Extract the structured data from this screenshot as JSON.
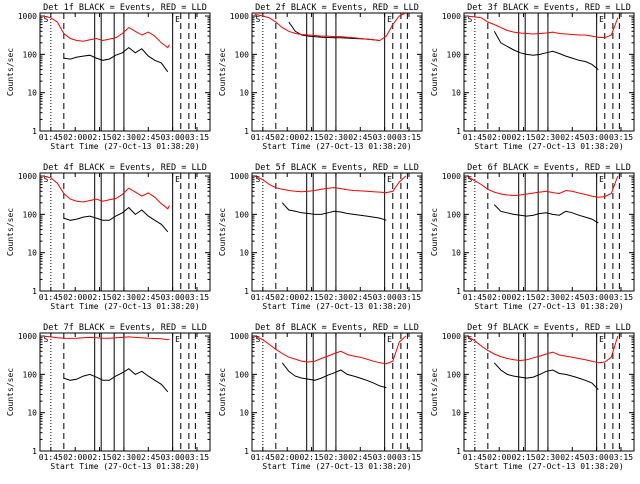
{
  "figure": {
    "y_axis_label": "Counts/sec",
    "x_axis_label": "Start Time (27-Oct-13 01:38:20)"
  },
  "axis": {
    "x_ticks": [
      "01:45",
      "02:00",
      "02:15",
      "02:30",
      "02:45",
      "03:00",
      "03:15"
    ],
    "x_tick_minutes": [
      0,
      15,
      30,
      45,
      60,
      75,
      90
    ],
    "y_ticks": [
      "1",
      "10",
      "100",
      "1000"
    ],
    "y_tick_values": [
      1,
      10,
      100,
      1000
    ],
    "xlim_minutes": [
      -6.67,
      98.0
    ],
    "ylim": [
      1,
      1200
    ],
    "scale": "log"
  },
  "colors": {
    "events": "#000000",
    "lld": "#ff0000",
    "frame": "#000000"
  },
  "chart_data": [
    {
      "type": "line",
      "title": "Det 1f BLACK = Events, RED = LLD",
      "x_minutes": [
        -5,
        0,
        4,
        8,
        12,
        16,
        20,
        24,
        28,
        32,
        36,
        40,
        44,
        48,
        52,
        56,
        60,
        64,
        68,
        72,
        73
      ],
      "series": [
        {
          "name": "Events",
          "values": [
            null,
            null,
            null,
            80,
            75,
            85,
            90,
            95,
            80,
            70,
            75,
            95,
            110,
            150,
            110,
            140,
            90,
            70,
            60,
            35,
            null
          ]
        },
        {
          "name": "LLD",
          "values": [
            1000,
            900,
            700,
            350,
            260,
            230,
            220,
            240,
            260,
            230,
            250,
            270,
            350,
            500,
            400,
            320,
            380,
            300,
            200,
            150,
            180
          ]
        }
      ],
      "markers": {
        "dotted": [
          0
        ],
        "dashed": [
          8,
          80,
          85,
          89
        ],
        "solid": [
          27,
          31,
          39,
          45,
          75
        ],
        "labels": {
          "S": -3,
          "E": 78
        }
      },
      "ylim": [
        1,
        1200
      ]
    },
    {
      "type": "line",
      "title": "Det 2f BLACK = Events, RED = LLD",
      "x_minutes": [
        -5,
        0,
        4,
        8,
        12,
        16,
        20,
        24,
        28,
        32,
        36,
        40,
        44,
        48,
        52,
        56,
        60,
        64,
        68,
        72,
        76,
        80,
        84,
        88
      ],
      "series": [
        {
          "name": "Events",
          "values": [
            null,
            null,
            null,
            null,
            null,
            700,
            400,
            320,
            300,
            290,
            280,
            275,
            270,
            270,
            265,
            260,
            255,
            250,
            240,
            230,
            null,
            null,
            null,
            null
          ]
        },
        {
          "name": "LLD",
          "values": [
            1100,
            1000,
            900,
            700,
            500,
            400,
            350,
            330,
            320,
            310,
            300,
            300,
            290,
            290,
            280,
            270,
            260,
            250,
            240,
            230,
            300,
            600,
            1000,
            1200
          ]
        }
      ],
      "markers": {
        "dotted": [
          0
        ],
        "dashed": [
          8,
          80,
          85,
          89
        ],
        "solid": [
          27,
          31,
          39,
          45,
          75
        ],
        "labels": {
          "S": -3,
          "E": 78
        }
      },
      "ylim": [
        1,
        1200
      ]
    },
    {
      "type": "line",
      "title": "Det 3f BLACK = Events, RED = LLD",
      "x_minutes": [
        -5,
        0,
        4,
        8,
        12,
        16,
        20,
        24,
        28,
        32,
        36,
        40,
        44,
        48,
        52,
        56,
        60,
        64,
        68,
        72,
        76,
        80,
        84,
        88
      ],
      "series": [
        {
          "name": "Events",
          "values": [
            null,
            null,
            null,
            null,
            400,
            200,
            160,
            130,
            110,
            100,
            95,
            100,
            110,
            120,
            105,
            90,
            80,
            70,
            65,
            55,
            40,
            null,
            null,
            null
          ]
        },
        {
          "name": "LLD",
          "values": [
            1000,
            950,
            900,
            700,
            600,
            500,
            420,
            380,
            360,
            350,
            340,
            350,
            360,
            380,
            350,
            340,
            330,
            320,
            320,
            300,
            280,
            270,
            320,
            900
          ]
        }
      ],
      "markers": {
        "dotted": [
          0
        ],
        "dashed": [
          8,
          80,
          85,
          89
        ],
        "solid": [
          27,
          31,
          39,
          45,
          75
        ],
        "labels": {
          "S": -3,
          "E": 78
        }
      },
      "ylim": [
        1,
        1200
      ]
    },
    {
      "type": "line",
      "title": "Det 4f BLACK = Events, RED = LLD",
      "x_minutes": [
        -5,
        0,
        4,
        8,
        12,
        16,
        20,
        24,
        28,
        32,
        36,
        40,
        44,
        48,
        52,
        56,
        60,
        64,
        68,
        72,
        73
      ],
      "series": [
        {
          "name": "Events",
          "values": [
            null,
            null,
            null,
            80,
            70,
            75,
            85,
            90,
            80,
            70,
            70,
            90,
            110,
            150,
            100,
            130,
            90,
            70,
            55,
            35,
            null
          ]
        },
        {
          "name": "LLD",
          "values": [
            1000,
            900,
            650,
            350,
            250,
            220,
            210,
            230,
            250,
            220,
            240,
            260,
            330,
            480,
            380,
            300,
            360,
            280,
            190,
            140,
            170
          ]
        }
      ],
      "markers": {
        "dotted": [
          0
        ],
        "dashed": [
          8,
          80,
          85,
          89
        ],
        "solid": [
          27,
          31,
          39,
          45,
          75
        ],
        "labels": {
          "S": -3,
          "E": 78
        }
      },
      "ylim": [
        1,
        1200
      ]
    },
    {
      "type": "line",
      "title": "Det 5f BLACK = Events, RED = LLD",
      "x_minutes": [
        -5,
        0,
        4,
        8,
        12,
        16,
        20,
        24,
        28,
        32,
        36,
        40,
        44,
        48,
        52,
        56,
        60,
        64,
        68,
        72,
        76,
        80,
        84,
        88
      ],
      "series": [
        {
          "name": "Events",
          "values": [
            null,
            null,
            null,
            null,
            200,
            130,
            120,
            110,
            105,
            100,
            100,
            110,
            120,
            115,
            105,
            100,
            95,
            90,
            85,
            80,
            70,
            null,
            null,
            null
          ]
        },
        {
          "name": "LLD",
          "values": [
            1000,
            800,
            600,
            500,
            450,
            420,
            400,
            390,
            400,
            420,
            450,
            480,
            500,
            470,
            440,
            420,
            410,
            400,
            390,
            380,
            370,
            400,
            700,
            1000
          ]
        }
      ],
      "markers": {
        "dotted": [
          0
        ],
        "dashed": [
          8,
          80,
          85,
          89
        ],
        "solid": [
          27,
          31,
          39,
          45,
          75
        ],
        "labels": {
          "S": -3,
          "E": 78
        }
      },
      "ylim": [
        1,
        1200
      ]
    },
    {
      "type": "line",
      "title": "Det 6f BLACK = Events, RED = LLD",
      "x_minutes": [
        -5,
        0,
        4,
        8,
        12,
        16,
        20,
        24,
        28,
        32,
        36,
        40,
        44,
        48,
        52,
        56,
        60,
        64,
        68,
        72,
        76,
        80,
        84,
        88
      ],
      "series": [
        {
          "name": "Events",
          "values": [
            null,
            null,
            null,
            null,
            180,
            120,
            110,
            100,
            95,
            90,
            95,
            105,
            110,
            100,
            95,
            120,
            110,
            95,
            85,
            75,
            60,
            null,
            null,
            null
          ]
        },
        {
          "name": "LLD",
          "values": [
            1000,
            750,
            600,
            450,
            380,
            340,
            320,
            310,
            320,
            340,
            360,
            380,
            400,
            370,
            350,
            420,
            400,
            360,
            330,
            300,
            280,
            290,
            350,
            1000
          ]
        }
      ],
      "markers": {
        "dotted": [
          0
        ],
        "dashed": [
          8,
          80,
          85,
          89
        ],
        "solid": [
          27,
          31,
          39,
          45,
          75
        ],
        "labels": {
          "S": -3,
          "E": 78
        }
      },
      "ylim": [
        1,
        1200
      ]
    },
    {
      "type": "line",
      "title": "Det 7f BLACK = Events, RED = LLD",
      "x_minutes": [
        -5,
        0,
        4,
        8,
        12,
        16,
        20,
        24,
        28,
        32,
        36,
        40,
        44,
        48,
        52,
        56,
        60,
        64,
        68,
        72,
        73
      ],
      "series": [
        {
          "name": "Events",
          "values": [
            null,
            null,
            null,
            80,
            70,
            75,
            90,
            100,
            85,
            70,
            70,
            90,
            110,
            140,
            100,
            120,
            90,
            70,
            55,
            35,
            null
          ]
        },
        {
          "name": "LLD",
          "values": [
            1000,
            950,
            900,
            880,
            870,
            880,
            900,
            920,
            900,
            880,
            880,
            900,
            920,
            950,
            920,
            900,
            880,
            860,
            850,
            800,
            820
          ]
        }
      ],
      "markers": {
        "dotted": [
          0
        ],
        "dashed": [
          8,
          80,
          85,
          89
        ],
        "solid": [
          27,
          31,
          39,
          45,
          75
        ],
        "labels": {
          "S": -3,
          "E": 78
        }
      },
      "ylim": [
        1,
        1200
      ]
    },
    {
      "type": "line",
      "title": "Det 8f BLACK = Events, RED = LLD",
      "x_minutes": [
        -5,
        0,
        4,
        8,
        12,
        16,
        20,
        24,
        28,
        32,
        36,
        40,
        44,
        48,
        52,
        56,
        60,
        64,
        68,
        72,
        76,
        80,
        84,
        88
      ],
      "series": [
        {
          "name": "Events",
          "values": [
            null,
            null,
            null,
            null,
            200,
            120,
            90,
            80,
            75,
            70,
            80,
            95,
            110,
            130,
            100,
            90,
            80,
            70,
            60,
            50,
            45,
            null,
            null,
            null
          ]
        },
        {
          "name": "LLD",
          "values": [
            1000,
            800,
            600,
            450,
            350,
            280,
            250,
            220,
            210,
            220,
            260,
            300,
            350,
            400,
            330,
            300,
            280,
            250,
            220,
            200,
            190,
            220,
            700,
            1000
          ]
        }
      ],
      "markers": {
        "dotted": [
          0
        ],
        "dashed": [
          8,
          80,
          85,
          89
        ],
        "solid": [
          27,
          31,
          39,
          45,
          75
        ],
        "labels": {
          "S": -3,
          "E": 78
        }
      },
      "ylim": [
        1,
        1200
      ]
    },
    {
      "type": "line",
      "title": "Det 9f BLACK = Events, RED = LLD",
      "x_minutes": [
        -5,
        0,
        4,
        8,
        12,
        16,
        20,
        24,
        28,
        32,
        36,
        40,
        44,
        48,
        52,
        56,
        60,
        64,
        68,
        72,
        76,
        80,
        84,
        88
      ],
      "series": [
        {
          "name": "Events",
          "values": [
            null,
            null,
            null,
            null,
            200,
            130,
            100,
            90,
            85,
            80,
            85,
            100,
            120,
            130,
            105,
            100,
            90,
            80,
            70,
            60,
            40,
            null,
            null,
            null
          ]
        },
        {
          "name": "LLD",
          "values": [
            1000,
            750,
            550,
            420,
            340,
            290,
            260,
            240,
            230,
            240,
            270,
            300,
            340,
            380,
            320,
            300,
            280,
            260,
            240,
            220,
            200,
            210,
            280,
            1000
          ]
        }
      ],
      "markers": {
        "dotted": [
          0
        ],
        "dashed": [
          8,
          80,
          85,
          89
        ],
        "solid": [
          27,
          31,
          39,
          45,
          75
        ],
        "labels": {
          "S": -3,
          "E": 78
        }
      },
      "ylim": [
        1,
        1200
      ]
    }
  ]
}
